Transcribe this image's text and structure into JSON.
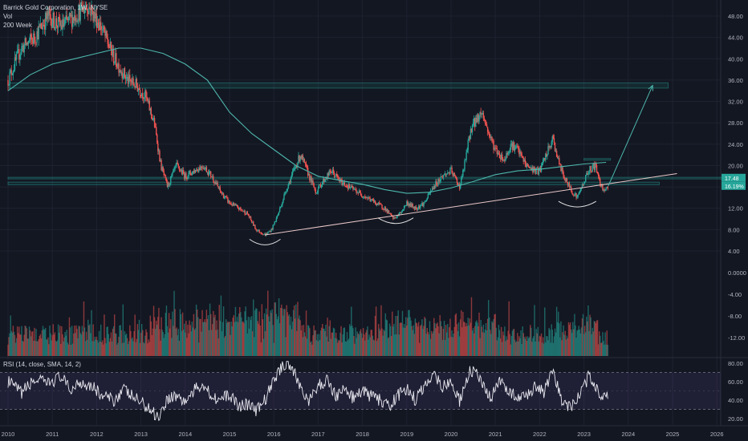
{
  "legend": {
    "title": "Barrick Gold Corporation, 1W, NYSE",
    "vol": "Vol",
    "ma": "200 Week"
  },
  "rsi_label": "RSI (14, close, SMA, 14, 2)",
  "price_badges": {
    "last": "17.48",
    "second": "16.19%"
  },
  "colors": {
    "background": "#131722",
    "up": "#26a69a",
    "down": "#ef5350",
    "ma": "#4db6ac",
    "zone": "#26a69a",
    "trendline": "#e8c8c8",
    "arrow": "#4db6ac",
    "rsi_line": "#e8e8f0",
    "rsi_band": "#7e57c2"
  },
  "chart_data": [
    {
      "type": "candlestick",
      "title": "Barrick Gold Corporation, 1W, NYSE",
      "x_ticks": [
        "2010",
        "2011",
        "2012",
        "2013",
        "2014",
        "2015",
        "2016",
        "2017",
        "2018",
        "2019",
        "2020",
        "2021",
        "2022",
        "2023",
        "2024",
        "2025",
        "2026"
      ],
      "y_ticks": [
        "48.00",
        "44.00",
        "40.00",
        "36.00",
        "32.00",
        "28.00",
        "24.00",
        "20.00",
        "16.00",
        "12.00",
        "8.00",
        "4.00"
      ],
      "ylim": [
        0,
        52
      ],
      "price_path": [
        [
          2010.0,
          36
        ],
        [
          2010.3,
          42
        ],
        [
          2010.6,
          44
        ],
        [
          2010.9,
          48
        ],
        [
          2011.2,
          46
        ],
        [
          2011.5,
          48
        ],
        [
          2011.8,
          50
        ],
        [
          2012.1,
          46
        ],
        [
          2012.4,
          40
        ],
        [
          2012.7,
          36
        ],
        [
          2012.9,
          35
        ],
        [
          2013.1,
          33
        ],
        [
          2013.3,
          28
        ],
        [
          2013.45,
          20
        ],
        [
          2013.6,
          16
        ],
        [
          2013.8,
          20
        ],
        [
          2014.0,
          18
        ],
        [
          2014.2,
          19
        ],
        [
          2014.4,
          20
        ],
        [
          2014.6,
          18
        ],
        [
          2014.8,
          15
        ],
        [
          2015.0,
          13
        ],
        [
          2015.2,
          12
        ],
        [
          2015.4,
          11
        ],
        [
          2015.6,
          8
        ],
        [
          2015.8,
          7
        ],
        [
          2015.95,
          8
        ],
        [
          2016.1,
          11
        ],
        [
          2016.3,
          16
        ],
        [
          2016.5,
          20
        ],
        [
          2016.6,
          22
        ],
        [
          2016.8,
          18
        ],
        [
          2016.95,
          15
        ],
        [
          2017.1,
          17
        ],
        [
          2017.3,
          19
        ],
        [
          2017.5,
          17
        ],
        [
          2017.7,
          16
        ],
        [
          2017.9,
          15
        ],
        [
          2018.1,
          14
        ],
        [
          2018.3,
          13
        ],
        [
          2018.5,
          12
        ],
        [
          2018.7,
          10
        ],
        [
          2018.85,
          11
        ],
        [
          2019.0,
          13
        ],
        [
          2019.2,
          12
        ],
        [
          2019.4,
          13
        ],
        [
          2019.6,
          16
        ],
        [
          2019.8,
          18
        ],
        [
          2020.0,
          19
        ],
        [
          2020.2,
          16
        ],
        [
          2020.3,
          20
        ],
        [
          2020.45,
          27
        ],
        [
          2020.6,
          29
        ],
        [
          2020.7,
          30
        ],
        [
          2020.85,
          26
        ],
        [
          2021.0,
          23
        ],
        [
          2021.2,
          21
        ],
        [
          2021.35,
          24
        ],
        [
          2021.5,
          23
        ],
        [
          2021.7,
          20
        ],
        [
          2021.9,
          19
        ],
        [
          2022.0,
          19
        ],
        [
          2022.15,
          22
        ],
        [
          2022.3,
          25
        ],
        [
          2022.45,
          20
        ],
        [
          2022.6,
          17
        ],
        [
          2022.75,
          15
        ],
        [
          2022.85,
          14
        ],
        [
          2022.95,
          16
        ],
        [
          2023.1,
          19
        ],
        [
          2023.25,
          20
        ],
        [
          2023.4,
          16
        ],
        [
          2023.5,
          15.5
        ],
        [
          2023.55,
          16.2
        ]
      ],
      "ma_200_path": [
        [
          2010.0,
          34
        ],
        [
          2010.5,
          37
        ],
        [
          2011.0,
          39
        ],
        [
          2011.5,
          40
        ],
        [
          2012.0,
          41
        ],
        [
          2012.5,
          42
        ],
        [
          2013.0,
          42
        ],
        [
          2013.5,
          41
        ],
        [
          2014.0,
          39
        ],
        [
          2014.5,
          36
        ],
        [
          2015.0,
          30
        ],
        [
          2015.5,
          26
        ],
        [
          2016.0,
          23
        ],
        [
          2016.5,
          20
        ],
        [
          2017.0,
          18
        ],
        [
          2017.5,
          17.2
        ],
        [
          2018.0,
          16.5
        ],
        [
          2018.5,
          15.5
        ],
        [
          2019.0,
          14.8
        ],
        [
          2019.5,
          15
        ],
        [
          2020.0,
          15.8
        ],
        [
          2020.5,
          17
        ],
        [
          2021.0,
          18.3
        ],
        [
          2021.5,
          19
        ],
        [
          2022.0,
          19.3
        ],
        [
          2022.5,
          19.8
        ],
        [
          2023.0,
          20.3
        ],
        [
          2023.5,
          20.6
        ]
      ],
      "zones": [
        {
          "from": 34.5,
          "to": 35.5,
          "x_from": 2010.0,
          "x_to": 2024.9
        },
        {
          "from": 16.4,
          "to": 16.9,
          "x_from": 2010.0,
          "x_to": 2024.7
        },
        {
          "from": 17.6,
          "to": 17.8,
          "x_from": 2010.0,
          "x_to": 2026.5
        },
        {
          "from": 21.2,
          "to": 21.3,
          "x_from": 2023.0,
          "x_to": 2023.6
        }
      ],
      "trendline": {
        "x0": 2015.8,
        "y0": 7,
        "x1": 2025.1,
        "y1": 18.5
      },
      "arrow": {
        "x0": 2023.55,
        "y0": 16.2,
        "x1": 2024.55,
        "y1": 35
      },
      "arcs": [
        {
          "x": 2015.8,
          "y": 6.2,
          "w": 0.7
        },
        {
          "x": 2018.75,
          "y": 10.2,
          "w": 0.8
        },
        {
          "x": 2022.85,
          "y": 13.3,
          "w": 0.85
        }
      ]
    },
    {
      "type": "bar",
      "name": "Vol",
      "y_ticks": [
        "0.0000",
        "-4.00",
        "-8.00",
        "-12.00"
      ],
      "values_note": "weekly volume bars"
    },
    {
      "type": "line",
      "name": "RSI (14, close, SMA, 14, 2)",
      "y_ticks": [
        "80.00",
        "60.00",
        "40.00",
        "20.00"
      ],
      "ylim": [
        15,
        85
      ],
      "bands": [
        30,
        70
      ],
      "rsi_path": [
        [
          2010.0,
          60
        ],
        [
          2010.3,
          48
        ],
        [
          2010.6,
          62
        ],
        [
          2010.9,
          58
        ],
        [
          2011.2,
          66
        ],
        [
          2011.4,
          50
        ],
        [
          2011.6,
          60
        ],
        [
          2011.9,
          56
        ],
        [
          2012.1,
          45
        ],
        [
          2012.4,
          40
        ],
        [
          2012.6,
          52
        ],
        [
          2012.8,
          44
        ],
        [
          2013.0,
          38
        ],
        [
          2013.2,
          30
        ],
        [
          2013.4,
          22
        ],
        [
          2013.6,
          42
        ],
        [
          2013.8,
          45
        ],
        [
          2014.0,
          38
        ],
        [
          2014.2,
          50
        ],
        [
          2014.4,
          58
        ],
        [
          2014.6,
          45
        ],
        [
          2014.8,
          40
        ],
        [
          2015.0,
          46
        ],
        [
          2015.2,
          34
        ],
        [
          2015.4,
          36
        ],
        [
          2015.6,
          28
        ],
        [
          2015.8,
          40
        ],
        [
          2016.0,
          62
        ],
        [
          2016.2,
          78
        ],
        [
          2016.35,
          80
        ],
        [
          2016.6,
          55
        ],
        [
          2016.8,
          38
        ],
        [
          2017.0,
          55
        ],
        [
          2017.2,
          62
        ],
        [
          2017.4,
          45
        ],
        [
          2017.6,
          52
        ],
        [
          2017.8,
          42
        ],
        [
          2018.0,
          50
        ],
        [
          2018.2,
          44
        ],
        [
          2018.4,
          40
        ],
        [
          2018.6,
          32
        ],
        [
          2018.8,
          45
        ],
        [
          2019.0,
          52
        ],
        [
          2019.2,
          40
        ],
        [
          2019.4,
          55
        ],
        [
          2019.6,
          70
        ],
        [
          2019.8,
          55
        ],
        [
          2020.0,
          60
        ],
        [
          2020.2,
          38
        ],
        [
          2020.4,
          70
        ],
        [
          2020.55,
          72
        ],
        [
          2020.7,
          55
        ],
        [
          2020.9,
          42
        ],
        [
          2021.1,
          60
        ],
        [
          2021.3,
          52
        ],
        [
          2021.5,
          40
        ],
        [
          2021.7,
          45
        ],
        [
          2021.9,
          55
        ],
        [
          2022.1,
          48
        ],
        [
          2022.3,
          70
        ],
        [
          2022.5,
          40
        ],
        [
          2022.7,
          32
        ],
        [
          2022.9,
          45
        ],
        [
          2023.1,
          65
        ],
        [
          2023.25,
          58
        ],
        [
          2023.4,
          42
        ],
        [
          2023.55,
          48
        ]
      ]
    }
  ]
}
